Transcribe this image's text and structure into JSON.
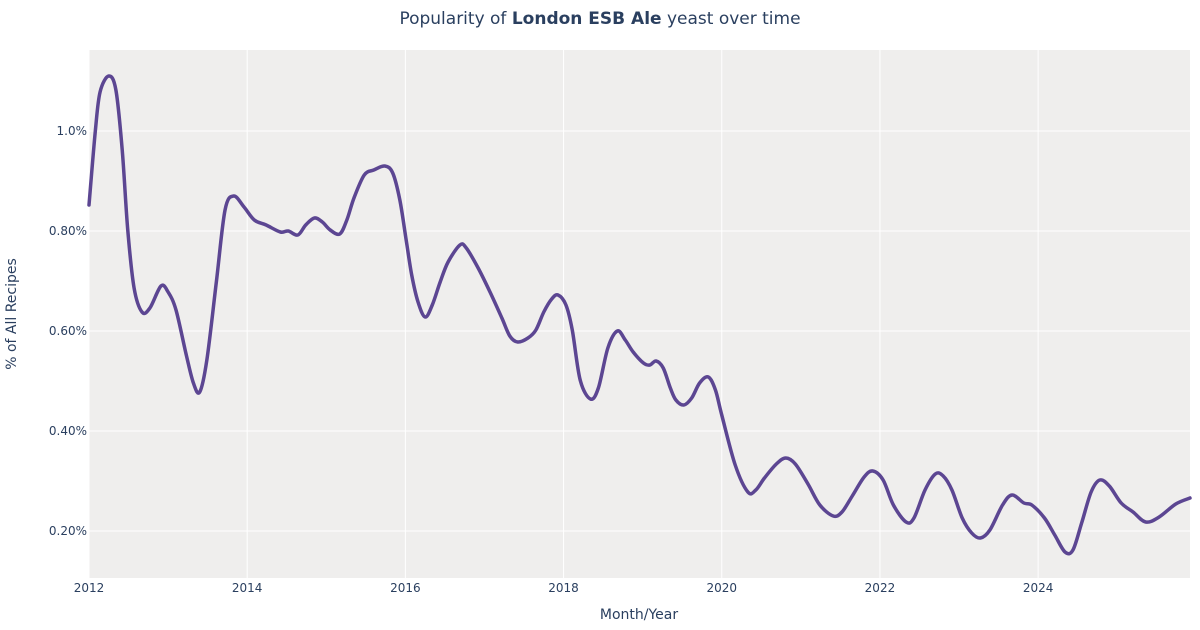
{
  "chart_data": {
    "type": "line",
    "title": {
      "prefix": "Popularity of ",
      "bold": "London ESB Ale",
      "suffix": " yeast over time"
    },
    "xlabel": "Month/Year",
    "ylabel": "% of All Recipes",
    "xlim": [
      2012,
      2025.92
    ],
    "ylim": [
      0.106,
      1.162
    ],
    "x_ticks": [
      2012,
      2014,
      2016,
      2018,
      2020,
      2022,
      2024
    ],
    "x_tick_labels": [
      "2012",
      "2014",
      "2016",
      "2018",
      "2020",
      "2022",
      "2024"
    ],
    "y_ticks": [
      0.2,
      0.4,
      0.6,
      0.8,
      1.0
    ],
    "y_tick_labels": [
      "0.20%",
      "0.40%",
      "0.60%",
      "0.80%",
      "1.0%"
    ],
    "grid": true,
    "legend": "none",
    "colors": {
      "line": "#5c4692",
      "plot_bg": "#efeeed",
      "grid": "#ffffff",
      "text": "#2a3f5f"
    },
    "series": [
      {
        "x": [
          2012.0,
          2012.08,
          2012.14,
          2012.25,
          2012.34,
          2012.42,
          2012.49,
          2012.57,
          2012.67,
          2012.77,
          2012.91,
          2013.0,
          2013.1,
          2013.23,
          2013.32,
          2013.4,
          2013.49,
          2013.61,
          2013.72,
          2013.83,
          2013.96,
          2014.09,
          2014.24,
          2014.42,
          2014.52,
          2014.64,
          2014.74,
          2014.85,
          2014.95,
          2015.05,
          2015.17,
          2015.26,
          2015.35,
          2015.48,
          2015.6,
          2015.74,
          2015.84,
          2015.93,
          2016.01,
          2016.08,
          2016.16,
          2016.25,
          2016.34,
          2016.44,
          2016.54,
          2016.69,
          2016.77,
          2016.92,
          2017.07,
          2017.22,
          2017.32,
          2017.42,
          2017.55,
          2017.65,
          2017.75,
          2017.85,
          2017.93,
          2018.03,
          2018.11,
          2018.21,
          2018.34,
          2018.44,
          2018.56,
          2018.68,
          2018.78,
          2018.88,
          2019.01,
          2019.09,
          2019.17,
          2019.26,
          2019.35,
          2019.42,
          2019.52,
          2019.62,
          2019.72,
          2019.83,
          2019.92,
          2020.0,
          2020.17,
          2020.33,
          2020.43,
          2020.54,
          2020.69,
          2020.81,
          2020.93,
          2021.09,
          2021.24,
          2021.41,
          2021.52,
          2021.65,
          2021.8,
          2021.91,
          2022.04,
          2022.17,
          2022.33,
          2022.43,
          2022.57,
          2022.7,
          2022.8,
          2022.91,
          2023.04,
          2023.16,
          2023.27,
          2023.39,
          2023.55,
          2023.67,
          2023.82,
          2023.92,
          2024.08,
          2024.21,
          2024.34,
          2024.44,
          2024.55,
          2024.67,
          2024.78,
          2024.9,
          2025.05,
          2025.2,
          2025.36,
          2025.53,
          2025.74,
          2025.92
        ],
        "y": [
          0.852,
          1.0,
          1.078,
          1.11,
          1.082,
          0.962,
          0.802,
          0.686,
          0.638,
          0.646,
          0.69,
          0.678,
          0.642,
          0.552,
          0.496,
          0.478,
          0.542,
          0.698,
          0.842,
          0.87,
          0.848,
          0.822,
          0.812,
          0.798,
          0.8,
          0.792,
          0.812,
          0.826,
          0.818,
          0.802,
          0.794,
          0.822,
          0.866,
          0.912,
          0.922,
          0.93,
          0.916,
          0.862,
          0.782,
          0.712,
          0.658,
          0.628,
          0.652,
          0.698,
          0.738,
          0.772,
          0.766,
          0.726,
          0.678,
          0.626,
          0.59,
          0.578,
          0.586,
          0.602,
          0.638,
          0.664,
          0.672,
          0.652,
          0.602,
          0.502,
          0.464,
          0.486,
          0.566,
          0.6,
          0.582,
          0.558,
          0.536,
          0.532,
          0.54,
          0.526,
          0.486,
          0.462,
          0.452,
          0.466,
          0.496,
          0.508,
          0.482,
          0.432,
          0.332,
          0.278,
          0.282,
          0.306,
          0.334,
          0.346,
          0.334,
          0.294,
          0.252,
          0.23,
          0.238,
          0.27,
          0.308,
          0.32,
          0.302,
          0.252,
          0.218,
          0.226,
          0.282,
          0.314,
          0.31,
          0.282,
          0.226,
          0.196,
          0.186,
          0.202,
          0.252,
          0.272,
          0.256,
          0.252,
          0.226,
          0.192,
          0.158,
          0.162,
          0.216,
          0.278,
          0.302,
          0.29,
          0.256,
          0.238,
          0.218,
          0.228,
          0.254,
          0.266
        ]
      }
    ]
  }
}
